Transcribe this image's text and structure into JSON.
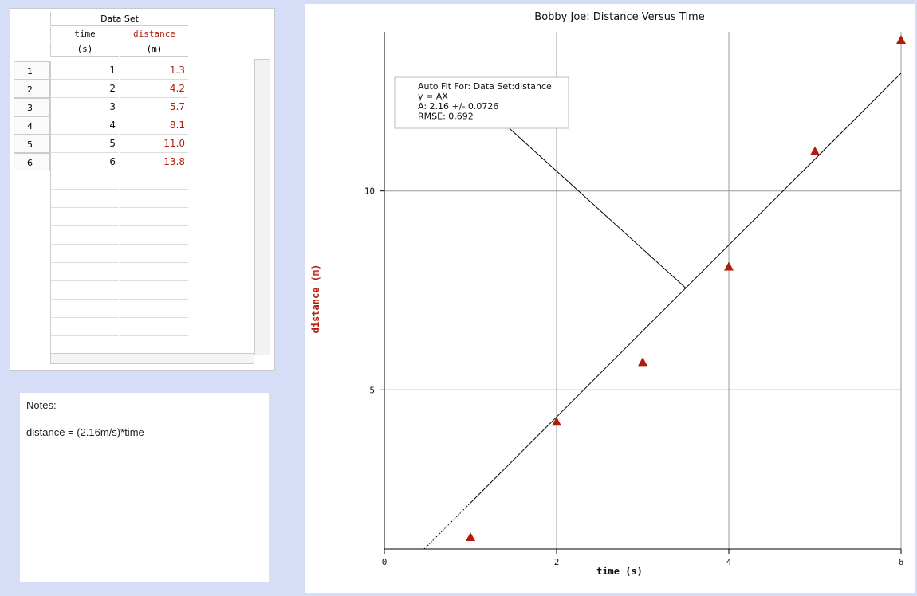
{
  "table": {
    "title": "Data Set",
    "columns": [
      {
        "name": "time",
        "unit": "(s)"
      },
      {
        "name": "distance",
        "unit": "(m)"
      }
    ],
    "rows": [
      [
        "1",
        "1",
        "1.3"
      ],
      [
        "2",
        "2",
        "4.2"
      ],
      [
        "3",
        "3",
        "5.7"
      ],
      [
        "4",
        "4",
        "8.1"
      ],
      [
        "5",
        "5",
        "11.0"
      ],
      [
        "6",
        "6",
        "13.8"
      ]
    ]
  },
  "notes": {
    "title": "Notes:",
    "text": "distance = (2.16m/s)*time"
  },
  "chart_data": {
    "type": "scatter",
    "title": "Bobby Joe: Distance Versus Time",
    "x_label": "time (s)",
    "y_label": "distance (m)",
    "x": [
      1,
      2,
      3,
      4,
      5,
      6
    ],
    "values": [
      1.3,
      4.2,
      5.7,
      8.1,
      11.0,
      13.8
    ],
    "color": "#b01c0c",
    "xlim": [
      0,
      6
    ],
    "ylim": [
      1,
      14
    ],
    "xticks": [
      0,
      2,
      4,
      6
    ],
    "yticks": [
      5,
      10
    ],
    "grid": true,
    "fit": {
      "slope": 2.16,
      "label_lines": [
        "Auto Fit For: Data Set:distance",
        "y = AX",
        "A: 2.16 +/- 0.0726",
        "RMSE: 0.692"
      ]
    }
  }
}
